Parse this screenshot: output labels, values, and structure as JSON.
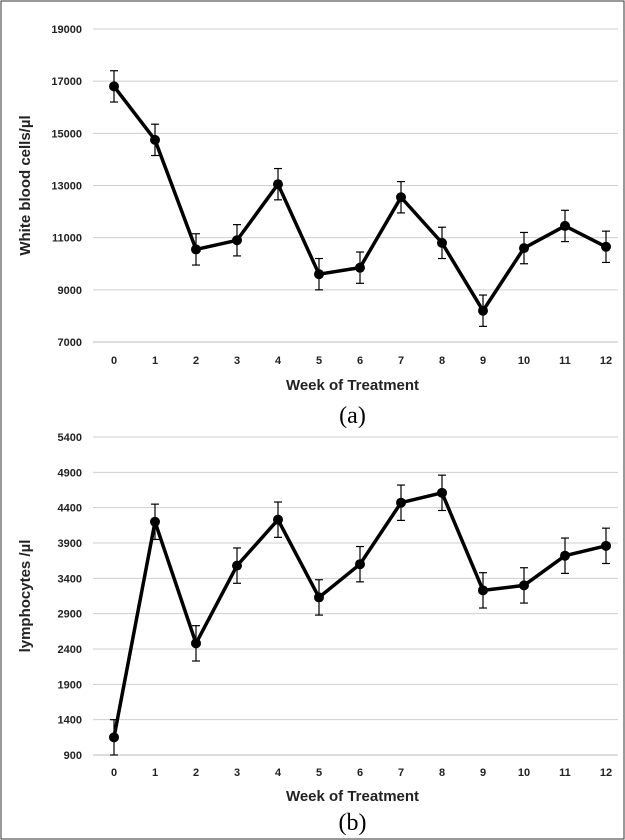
{
  "chart_data": [
    {
      "type": "line",
      "panel_label": "(a)",
      "title": "",
      "xlabel": "Week of Treatment",
      "ylabel": "White blood cells/µl",
      "x": [
        0,
        1,
        2,
        3,
        4,
        5,
        6,
        7,
        8,
        9,
        10,
        11,
        12
      ],
      "ylim": [
        7000,
        19000
      ],
      "yticks": [
        7000,
        9000,
        11000,
        13000,
        15000,
        17000,
        19000
      ],
      "grid": true,
      "line_color": "#000000",
      "series": [
        {
          "values": [
            16800,
            14750,
            10550,
            10900,
            13050,
            9600,
            9850,
            12550,
            10800,
            8200,
            10600,
            11450,
            10650
          ],
          "error": [
            600,
            600,
            600,
            600,
            600,
            600,
            600,
            600,
            600,
            600,
            600,
            600,
            600
          ]
        }
      ]
    },
    {
      "type": "line",
      "panel_label": "(b)",
      "title": "",
      "xlabel": "Week of Treatment",
      "ylabel": "lymphocytes /µl",
      "x": [
        0,
        1,
        2,
        3,
        4,
        5,
        6,
        7,
        8,
        9,
        10,
        11,
        12
      ],
      "ylim": [
        900,
        5400
      ],
      "yticks": [
        900,
        1400,
        1900,
        2400,
        2900,
        3400,
        3900,
        4400,
        4900,
        5400
      ],
      "grid": true,
      "line_color": "#000000",
      "series": [
        {
          "values": [
            1150,
            4200,
            2480,
            3580,
            4230,
            3130,
            3600,
            4470,
            4610,
            3230,
            3300,
            3720,
            3860
          ],
          "error": [
            250,
            250,
            250,
            250,
            250,
            250,
            250,
            250,
            250,
            250,
            250,
            250,
            250
          ]
        }
      ]
    }
  ]
}
